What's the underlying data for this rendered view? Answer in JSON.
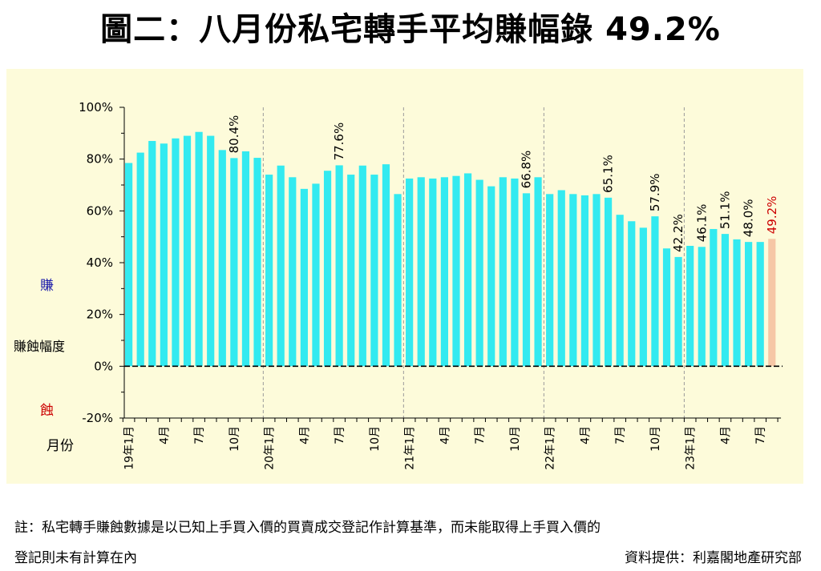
{
  "title": "圖二：八月份私宅轉手平均賺幅錄 49.2%",
  "note": {
    "line1": "註：私宅轉手賺蝕數據是以已知上手買入價的買賣成交登記作計算基準，而未能取得上手買入價的",
    "line2": "登記則未有計算在內"
  },
  "source": "資料提供：利嘉閣地產研究部",
  "colors": {
    "bar": "#33eaf0",
    "highlight_bar": "#f6c7a6",
    "highlight_label": "#cc0000",
    "gain_label": "#1a1aaa",
    "loss_label": "#cc0000",
    "plot_background": "#fdfbda"
  },
  "chart_data": {
    "type": "bar",
    "ylabel": "賺蝕幅度",
    "xlabel": "月份",
    "gain_label": "賺",
    "loss_label": "蝕",
    "ylim": [
      -20,
      100
    ],
    "yticks": [
      "100%",
      "80%",
      "60%",
      "40%",
      "20%",
      "0%",
      "-20%"
    ],
    "ytick_values": [
      100,
      80,
      60,
      40,
      20,
      0,
      -20
    ],
    "grid": false,
    "year_dividers": true,
    "categories": [
      "19年1月",
      "19年2月",
      "19年3月",
      "19年4月",
      "19年5月",
      "19年6月",
      "19年7月",
      "19年8月",
      "19年9月",
      "19年10月",
      "19年11月",
      "19年12月",
      "20年1月",
      "20年2月",
      "20年3月",
      "20年4月",
      "20年5月",
      "20年6月",
      "20年7月",
      "20年8月",
      "20年9月",
      "20年10月",
      "20年11月",
      "20年12月",
      "21年1月",
      "21年2月",
      "21年3月",
      "21年4月",
      "21年5月",
      "21年6月",
      "21年7月",
      "21年8月",
      "21年9月",
      "21年10月",
      "21年11月",
      "21年12月",
      "22年1月",
      "22年2月",
      "22年3月",
      "22年4月",
      "22年5月",
      "22年6月",
      "22年7月",
      "22年8月",
      "22年9月",
      "22年10月",
      "22年11月",
      "22年12月",
      "23年1月",
      "23年2月",
      "23年3月",
      "23年4月",
      "23年5月",
      "23年6月",
      "23年7月",
      "23年8月"
    ],
    "tick_labels": [
      {
        "index": 0,
        "text": "19年1月"
      },
      {
        "index": 3,
        "text": "4月"
      },
      {
        "index": 6,
        "text": "7月"
      },
      {
        "index": 9,
        "text": "10月"
      },
      {
        "index": 12,
        "text": "20年1月"
      },
      {
        "index": 15,
        "text": "4月"
      },
      {
        "index": 18,
        "text": "7月"
      },
      {
        "index": 21,
        "text": "10月"
      },
      {
        "index": 24,
        "text": "21年1月"
      },
      {
        "index": 27,
        "text": "4月"
      },
      {
        "index": 30,
        "text": "7月"
      },
      {
        "index": 33,
        "text": "10月"
      },
      {
        "index": 36,
        "text": "22年1月"
      },
      {
        "index": 39,
        "text": "4月"
      },
      {
        "index": 42,
        "text": "7月"
      },
      {
        "index": 45,
        "text": "10月"
      },
      {
        "index": 48,
        "text": "23年1月"
      },
      {
        "index": 51,
        "text": "4月"
      },
      {
        "index": 54,
        "text": "7月"
      }
    ],
    "values": [
      78.5,
      82.5,
      87.0,
      86.0,
      88.0,
      89.0,
      90.5,
      89.0,
      83.5,
      80.4,
      83.0,
      80.5,
      74.0,
      77.5,
      73.0,
      68.5,
      70.5,
      75.5,
      77.6,
      74.0,
      77.5,
      74.0,
      78.0,
      66.5,
      72.5,
      73.0,
      72.5,
      73.0,
      73.5,
      74.5,
      72.0,
      69.5,
      73.0,
      72.5,
      66.8,
      73.0,
      66.5,
      68.0,
      66.5,
      66.0,
      66.5,
      65.1,
      58.5,
      56.0,
      53.5,
      57.9,
      45.5,
      42.2,
      46.5,
      46.1,
      53.0,
      51.1,
      49.0,
      48.0,
      48.0,
      49.2
    ],
    "data_labels": [
      {
        "index": 9,
        "text": "80.4%"
      },
      {
        "index": 18,
        "text": "77.6%"
      },
      {
        "index": 34,
        "text": "66.8%"
      },
      {
        "index": 41,
        "text": "65.1%"
      },
      {
        "index": 45,
        "text": "57.9%"
      },
      {
        "index": 47,
        "text": "42.2%"
      },
      {
        "index": 49,
        "text": "46.1%"
      },
      {
        "index": 51,
        "text": "51.1%"
      },
      {
        "index": 53,
        "text": "48.0%"
      },
      {
        "index": 55,
        "text": "49.2%"
      }
    ],
    "highlight_index": 55
  }
}
